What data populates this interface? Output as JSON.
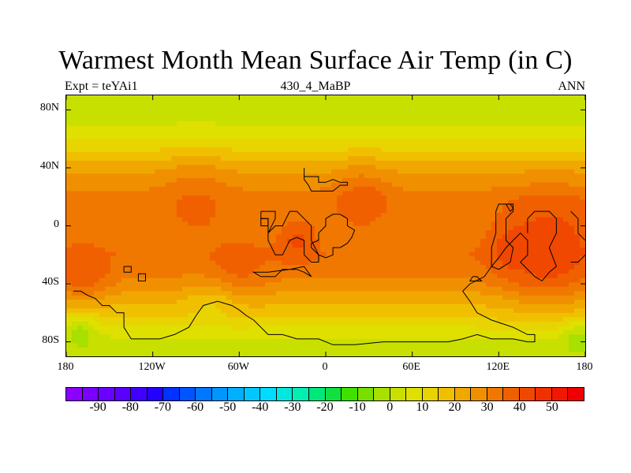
{
  "title": "Warmest Month Mean Surface Air Temp (in C)",
  "subtitle": {
    "left": "Expt = teYAi1",
    "center": "430_4_MaBP",
    "right": "ANN"
  },
  "chart_data": {
    "type": "heatmap",
    "projection": "cylindrical-equidistant",
    "title": "Warmest Month Mean Surface Air Temp (in C)",
    "units": "C",
    "x_range": [
      -180,
      180
    ],
    "y_range": [
      -90,
      90
    ],
    "x_tick_values": [
      -180,
      -120,
      -60,
      0,
      60,
      120,
      180
    ],
    "x_tick_labels": [
      "180",
      "120W",
      "60W",
      "0",
      "60E",
      "120E",
      "180"
    ],
    "y_tick_values": [
      80,
      40,
      0,
      -40,
      -80
    ],
    "y_tick_labels": [
      "80N",
      "40N",
      "0",
      "40S",
      "80S"
    ],
    "zonal_profile": [
      {
        "lat": 90,
        "temp": 3
      },
      {
        "lat": 75,
        "temp": 3
      },
      {
        "lat": 68,
        "temp": 6
      },
      {
        "lat": 60,
        "temp": 10
      },
      {
        "lat": 50,
        "temp": 16
      },
      {
        "lat": 42,
        "temp": 22
      },
      {
        "lat": 35,
        "temp": 25
      },
      {
        "lat": 28,
        "temp": 28
      },
      {
        "lat": 18,
        "temp": 33
      },
      {
        "lat": 5,
        "temp": 31
      },
      {
        "lat": -5,
        "temp": 30
      },
      {
        "lat": -20,
        "temp": 34
      },
      {
        "lat": -30,
        "temp": 32
      },
      {
        "lat": -40,
        "temp": 28
      },
      {
        "lat": -50,
        "temp": 22
      },
      {
        "lat": -60,
        "temp": 17
      },
      {
        "lat": -68,
        "temp": 12
      },
      {
        "lat": -75,
        "temp": 6
      },
      {
        "lat": -83,
        "temp": 3
      },
      {
        "lat": -90,
        "temp": 3
      }
    ],
    "hot_spots": [
      {
        "lon": 155,
        "lat": -15,
        "temp": 45,
        "radius_deg": 32
      },
      {
        "lon": 130,
        "lat": -15,
        "temp": 42,
        "radius_deg": 18
      },
      {
        "lon": -168,
        "lat": -30,
        "temp": 40,
        "radius_deg": 18
      },
      {
        "lon": -20,
        "lat": -10,
        "temp": 41,
        "radius_deg": 15
      },
      {
        "lon": 25,
        "lat": 15,
        "temp": 38,
        "radius_deg": 20
      },
      {
        "lon": -90,
        "lat": 10,
        "temp": 36,
        "radius_deg": 25
      },
      {
        "lon": -60,
        "lat": -25,
        "temp": 37,
        "radius_deg": 20
      }
    ],
    "cold_spots": [
      {
        "lon": -80,
        "lat": -62,
        "temp": 14,
        "radius_deg": 18
      },
      {
        "lon": -170,
        "lat": -75,
        "temp": -2,
        "radius_deg": 12
      },
      {
        "lon": 175,
        "lat": -80,
        "temp": -2,
        "radius_deg": 12
      }
    ],
    "coastlines": [
      [
        [
          -15,
          40
        ],
        [
          -15,
          34
        ],
        [
          -5,
          34
        ],
        [
          -5,
          30
        ],
        [
          0,
          30
        ],
        [
          5,
          32
        ],
        [
          10,
          30
        ],
        [
          15,
          30
        ],
        [
          15,
          28
        ],
        [
          10,
          28
        ],
        [
          5,
          24
        ],
        [
          -10,
          24
        ],
        [
          -12,
          28
        ],
        [
          -15,
          32
        ],
        [
          -15,
          40
        ]
      ],
      [
        [
          -45,
          10
        ],
        [
          -45,
          5
        ],
        [
          -40,
          5
        ],
        [
          -40,
          -10
        ],
        [
          -35,
          -20
        ],
        [
          -30,
          -20
        ],
        [
          -25,
          -10
        ],
        [
          -20,
          -8
        ],
        [
          -15,
          -10
        ],
        [
          -15,
          -20
        ],
        [
          -10,
          -25
        ],
        [
          -5,
          -25
        ],
        [
          -5,
          -20
        ],
        [
          -10,
          -10
        ],
        [
          -10,
          0
        ],
        [
          -15,
          5
        ],
        [
          -20,
          10
        ],
        [
          -25,
          10
        ],
        [
          -30,
          0
        ],
        [
          -35,
          0
        ],
        [
          -40,
          -5
        ],
        [
          -35,
          5
        ],
        [
          -35,
          10
        ],
        [
          -45,
          10
        ]
      ],
      [
        [
          -45,
          0
        ],
        [
          -45,
          5
        ],
        [
          -40,
          5
        ],
        [
          -40,
          0
        ],
        [
          -45,
          0
        ]
      ],
      [
        [
          -5,
          -10
        ],
        [
          -5,
          -5
        ],
        [
          0,
          0
        ],
        [
          0,
          5
        ],
        [
          5,
          8
        ],
        [
          10,
          8
        ],
        [
          15,
          5
        ],
        [
          15,
          0
        ],
        [
          20,
          -3
        ],
        [
          18,
          -8
        ],
        [
          15,
          -12
        ],
        [
          10,
          -15
        ],
        [
          5,
          -15
        ],
        [
          5,
          -20
        ],
        [
          0,
          -22
        ],
        [
          -5,
          -20
        ],
        [
          -10,
          -15
        ],
        [
          -10,
          -12
        ],
        [
          -5,
          -10
        ]
      ],
      [
        [
          -10,
          -35
        ],
        [
          -15,
          -32
        ],
        [
          -20,
          -30
        ],
        [
          -30,
          -30
        ],
        [
          -35,
          -35
        ],
        [
          -45,
          -35
        ],
        [
          -50,
          -32
        ],
        [
          -40,
          -32
        ],
        [
          -25,
          -30
        ],
        [
          -15,
          -28
        ],
        [
          -10,
          -35
        ]
      ],
      [
        [
          -130,
          -33
        ],
        [
          -125,
          -33
        ],
        [
          -125,
          -38
        ],
        [
          -130,
          -38
        ],
        [
          -130,
          -33
        ]
      ],
      [
        [
          -140,
          -28
        ],
        [
          -135,
          -28
        ],
        [
          -135,
          -32
        ],
        [
          -140,
          -32
        ],
        [
          -140,
          -28
        ]
      ],
      [
        [
          -175,
          -45
        ],
        [
          -170,
          -45
        ],
        [
          -165,
          -48
        ],
        [
          -160,
          -50
        ],
        [
          -155,
          -55
        ],
        [
          -150,
          -55
        ],
        [
          -145,
          -60
        ],
        [
          -140,
          -60
        ],
        [
          -140,
          -70
        ],
        [
          -135,
          -78
        ],
        [
          -125,
          -78
        ],
        [
          -115,
          -78
        ],
        [
          -105,
          -75
        ],
        [
          -95,
          -70
        ],
        [
          -90,
          -62
        ],
        [
          -85,
          -55
        ],
        [
          -75,
          -52
        ],
        [
          -65,
          -55
        ],
        [
          -60,
          -58
        ],
        [
          -55,
          -62
        ],
        [
          -50,
          -65
        ],
        [
          -45,
          -70
        ],
        [
          -40,
          -75
        ],
        [
          -30,
          -75
        ],
        [
          -20,
          -78
        ],
        [
          -5,
          -78
        ],
        [
          5,
          -82
        ],
        [
          20,
          -82
        ],
        [
          40,
          -80
        ],
        [
          60,
          -80
        ],
        [
          75,
          -80
        ],
        [
          85,
          -80
        ],
        [
          95,
          -78
        ],
        [
          105,
          -75
        ],
        [
          115,
          -78
        ],
        [
          130,
          -78
        ],
        [
          140,
          -80
        ],
        [
          145,
          -80
        ],
        [
          145,
          -75
        ],
        [
          140,
          -75
        ],
        [
          130,
          -70
        ],
        [
          115,
          -65
        ],
        [
          105,
          -60
        ],
        [
          100,
          -52
        ],
        [
          95,
          -45
        ],
        [
          100,
          -40
        ],
        [
          110,
          -35
        ],
        [
          115,
          -28
        ],
        [
          120,
          -22
        ],
        [
          125,
          -15
        ],
        [
          130,
          -10
        ],
        [
          135,
          -5
        ],
        [
          140,
          -10
        ],
        [
          140,
          -20
        ],
        [
          135,
          -25
        ],
        [
          140,
          -30
        ],
        [
          145,
          -35
        ],
        [
          150,
          -38
        ],
        [
          155,
          -32
        ],
        [
          160,
          -28
        ],
        [
          155,
          -15
        ],
        [
          160,
          -5
        ],
        [
          160,
          5
        ],
        [
          155,
          10
        ],
        [
          145,
          10
        ],
        [
          140,
          5
        ],
        [
          140,
          -5
        ]
      ],
      [
        [
          115,
          -28
        ],
        [
          115,
          -15
        ],
        [
          118,
          -5
        ],
        [
          118,
          10
        ],
        [
          120,
          15
        ],
        [
          130,
          15
        ],
        [
          130,
          10
        ],
        [
          125,
          5
        ],
        [
          125,
          -10
        ],
        [
          130,
          -15
        ],
        [
          128,
          -25
        ],
        [
          120,
          -30
        ],
        [
          115,
          -28
        ]
      ],
      [
        [
          125,
          15
        ],
        [
          128,
          10
        ],
        [
          130,
          12
        ],
        [
          128,
          15
        ],
        [
          125,
          15
        ]
      ],
      [
        [
          102,
          -35
        ],
        [
          105,
          -35
        ],
        [
          108,
          -38
        ],
        [
          100,
          -38
        ],
        [
          102,
          -35
        ]
      ],
      [
        [
          170,
          10
        ],
        [
          175,
          5
        ],
        [
          175,
          -5
        ],
        [
          180,
          -10
        ]
      ],
      [
        [
          180,
          -20
        ],
        [
          175,
          -25
        ],
        [
          170,
          -25
        ]
      ]
    ]
  },
  "colorbar": {
    "colors": [
      "#8b00ff",
      "#7a00ff",
      "#6a00ff",
      "#5a00ff",
      "#3f00ff",
      "#2400ff",
      "#0033ff",
      "#0055ff",
      "#0077ff",
      "#0096ff",
      "#00b0ff",
      "#00c8ff",
      "#00dcff",
      "#00e8e0",
      "#00f0b4",
      "#00e87a",
      "#10e040",
      "#40e000",
      "#78e000",
      "#a8e000",
      "#c8e000",
      "#e0e000",
      "#e8d400",
      "#f0c000",
      "#f0a800",
      "#f09000",
      "#f07800",
      "#f06000",
      "#f04800",
      "#f03000",
      "#f01800",
      "#f00000"
    ],
    "levels": [
      -95,
      -90,
      -85,
      -80,
      -75,
      -70,
      -65,
      -60,
      -55,
      -50,
      -45,
      -40,
      -35,
      -30,
      -25,
      -20,
      -15,
      -10,
      -5,
      0,
      5,
      10,
      15,
      20,
      25,
      30,
      35,
      40,
      45,
      50,
      55
    ],
    "labels": [
      "-90",
      "-80",
      "-70",
      "-60",
      "-50",
      "-40",
      "-30",
      "-20",
      "-10",
      "0",
      "10",
      "20",
      "30",
      "40",
      "50"
    ]
  }
}
